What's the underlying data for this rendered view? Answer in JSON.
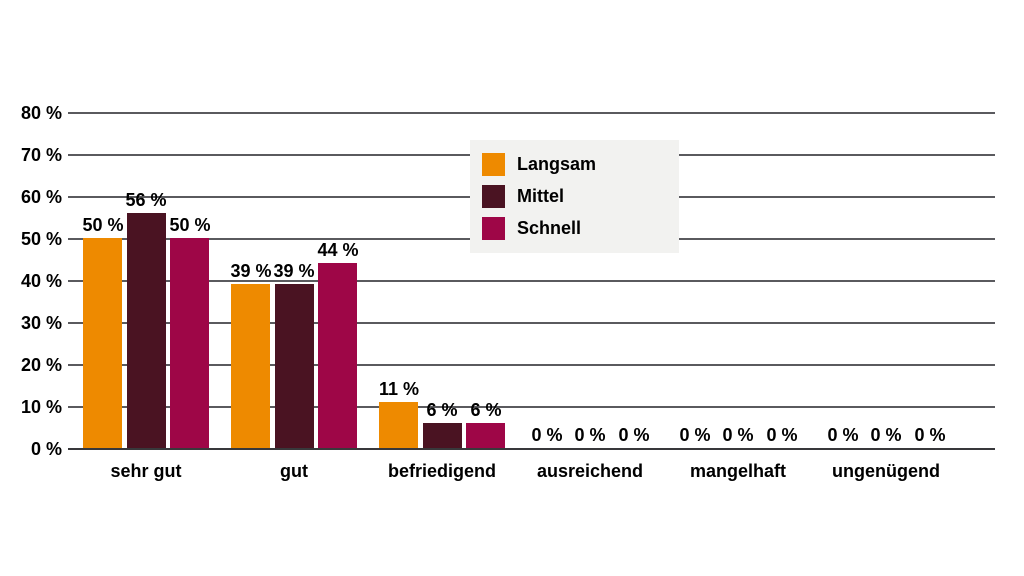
{
  "page": {
    "background": "#ffffff"
  },
  "style": {
    "grid_color": "#5a5a5e",
    "axis_color": "#38383b",
    "text_color": "#000000",
    "legend_background": "#f2f2f0"
  },
  "legend": {
    "items": [
      {
        "label": "Langsam",
        "color": "#ee8a00"
      },
      {
        "label": "Mittel",
        "color": "#4a1322"
      },
      {
        "label": "Schnell",
        "color": "#9e0647"
      }
    ]
  },
  "chart_data": {
    "type": "bar",
    "title": "",
    "xlabel": "",
    "ylabel": "",
    "categories": [
      "sehr gut",
      "gut",
      "befriedigend",
      "ausreichend",
      "mangelhaft",
      "ungenügend"
    ],
    "series": [
      {
        "name": "Langsam",
        "color": "#ee8a00",
        "values": [
          50,
          39,
          11,
          0,
          0,
          0
        ]
      },
      {
        "name": "Mittel",
        "color": "#4a1322",
        "values": [
          56,
          39,
          6,
          0,
          0,
          0
        ]
      },
      {
        "name": "Schnell",
        "color": "#9e0647",
        "values": [
          50,
          44,
          6,
          0,
          0,
          0
        ]
      }
    ],
    "value_suffix": " %",
    "data_labels": true,
    "y_ticks": [
      {
        "value": 80,
        "label": "80 %"
      },
      {
        "value": 70,
        "label": "70 %"
      },
      {
        "value": 60,
        "label": "60 %"
      },
      {
        "value": 50,
        "label": "50 %"
      },
      {
        "value": 40,
        "label": "40 %"
      },
      {
        "value": 30,
        "label": "30 %"
      },
      {
        "value": 20,
        "label": "20 %"
      },
      {
        "value": 10,
        "label": "10 %"
      },
      {
        "value": 0,
        "label": "0 %"
      }
    ],
    "ylim": [
      0,
      80
    ],
    "grid": true,
    "legend_position": "inside-top-center"
  }
}
